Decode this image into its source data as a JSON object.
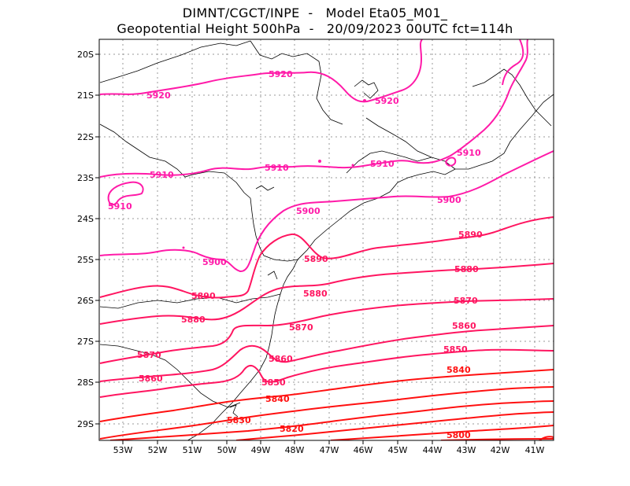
{
  "title": {
    "line1": "DIMNT/CGCT/INPE  -   Model Eta05_M01_",
    "line2": "Geopotential Height 500hPa  -   20/09/2023 00UTC fct=114h"
  },
  "axes": {
    "lat_labels": [
      "20S",
      "21S",
      "22S",
      "23S",
      "24S",
      "25S",
      "26S",
      "27S",
      "28S",
      "29S"
    ],
    "lon_labels": [
      "53W",
      "52W",
      "51W",
      "50W",
      "49W",
      "48W",
      "47W",
      "46W",
      "45W",
      "44W",
      "43W",
      "42W",
      "41W"
    ]
  },
  "colors": {
    "high": "#ff1aa8",
    "mid": "#ff1560",
    "low": "#ff1010",
    "coast": "#000000",
    "grid": "#999999"
  },
  "contours": [
    {
      "value": "5920",
      "labels": [
        "5920",
        "5920",
        "5920"
      ]
    },
    {
      "value": "5910",
      "labels": [
        "5910",
        "5910",
        "5910",
        "5910",
        "5910"
      ]
    },
    {
      "value": "5900",
      "labels": [
        "5900",
        "5900",
        "5900"
      ]
    },
    {
      "value": "5890",
      "labels": [
        "5890",
        "5890",
        "5890"
      ]
    },
    {
      "value": "5880",
      "labels": [
        "5880",
        "5880",
        "5880"
      ]
    },
    {
      "value": "5870",
      "labels": [
        "5870",
        "5870",
        "5870"
      ]
    },
    {
      "value": "5860",
      "labels": [
        "5860",
        "5860",
        "5860"
      ]
    },
    {
      "value": "5850",
      "labels": [
        "5850",
        "5850"
      ]
    },
    {
      "value": "5840",
      "labels": [
        "5840",
        "5840"
      ]
    },
    {
      "value": "5830",
      "labels": [
        "5830"
      ]
    },
    {
      "value": "5820",
      "labels": [
        "5820"
      ]
    },
    {
      "value": "5800",
      "labels": [
        "5800"
      ]
    }
  ]
}
